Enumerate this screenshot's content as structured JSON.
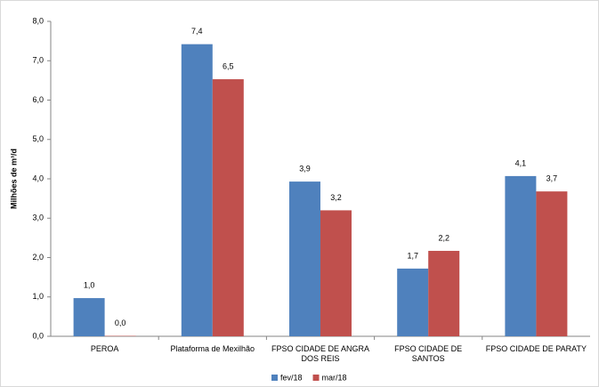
{
  "chart_data": {
    "type": "bar",
    "y_label": "Milhões de m³/d",
    "categories": [
      "PEROA",
      "Plataforma de Mexilhão",
      "FPSO CIDADE DE ANGRA DOS REIS",
      "FPSO CIDADE DE SANTOS",
      "FPSO CIDADE DE PARATY"
    ],
    "series": [
      {
        "name": "fev/18",
        "color": "#4f81bd",
        "values": [
          0.97,
          7.42,
          3.93,
          1.72,
          4.07
        ],
        "value_labels": [
          "1,0",
          "7,4",
          "3,9",
          "1,7",
          "4,1"
        ]
      },
      {
        "name": "mar/18",
        "color": "#c0504d",
        "values": [
          0.01,
          6.53,
          3.2,
          2.17,
          3.68
        ],
        "value_labels": [
          "0,0",
          "6,5",
          "3,2",
          "2,2",
          "3,7"
        ]
      }
    ],
    "ylim": [
      0,
      8
    ],
    "yticks": [
      {
        "value": 0,
        "label": "0,0"
      },
      {
        "value": 1,
        "label": "1,0"
      },
      {
        "value": 2,
        "label": "2,0"
      },
      {
        "value": 3,
        "label": "3,0"
      },
      {
        "value": 4,
        "label": "4,0"
      },
      {
        "value": 5,
        "label": "5,0"
      },
      {
        "value": 6,
        "label": "6,0"
      },
      {
        "value": 7,
        "label": "7,0"
      },
      {
        "value": 8,
        "label": "8,0"
      }
    ],
    "legend": "bottom"
  }
}
